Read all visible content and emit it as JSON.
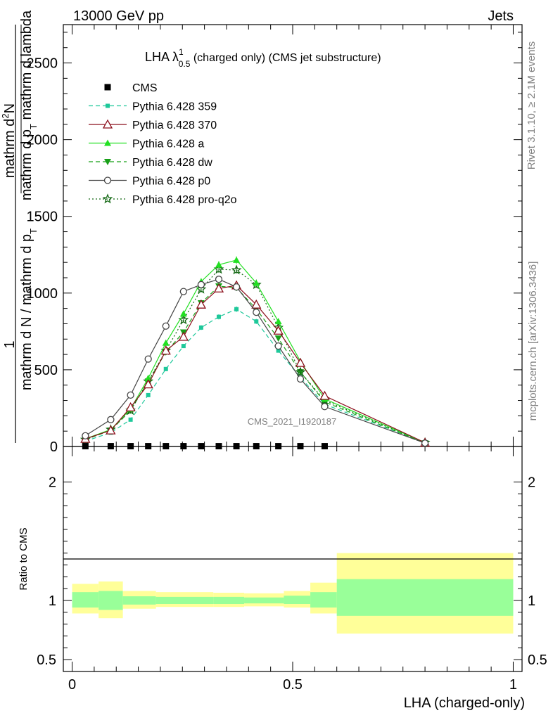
{
  "header": {
    "left": "13000 GeV pp",
    "right": "Jets"
  },
  "side_labels": {
    "rivet": "Rivet 3.1.10, ≥ 2.1M events",
    "mcplots": "mcplots.cern.ch [arXiv:1306.3436]"
  },
  "plot_title": {
    "prefix": "LHA λ",
    "sup": "1",
    "sub": "0.5",
    "suffix": " (charged only) (CMS jet substructure)"
  },
  "watermark": "CMS_2021_I1920187",
  "xlabel": "LHA (charged-only)",
  "ylabel_main": {
    "numerator": "1",
    "denominator": "mathrm d N / mathrm d p",
    "denominator_sub": "T",
    "inner_numerator": "mathrm d",
    "inner_numerator_sup": "2",
    "inner_numerator_rest": "N",
    "inner_denominator": "mathrm d p",
    "inner_denominator_sub": "T",
    "inner_denominator_rest": " mathrm d lambda"
  },
  "ylabel_ratio": "Ratio to CMS",
  "main_yticks": [
    {
      "v": 0,
      "label": "0"
    },
    {
      "v": 500,
      "label": "500"
    },
    {
      "v": 1000,
      "label": "1000"
    },
    {
      "v": 1500,
      "label": "1500"
    },
    {
      "v": 2000,
      "label": "2000"
    },
    {
      "v": 2500,
      "label": "2500"
    }
  ],
  "ratio_yticks": [
    {
      "v": 0.5,
      "label": "0.5"
    },
    {
      "v": 1,
      "label": "1"
    },
    {
      "v": 2,
      "label": "2"
    }
  ],
  "xticks": [
    {
      "v": 0,
      "label": "0"
    },
    {
      "v": 0.5,
      "label": "0.5"
    },
    {
      "v": 1,
      "label": "1"
    }
  ],
  "colors": {
    "cms": "#000000",
    "p359": "#1ec89a",
    "p370": "#8b0d1a",
    "pa": "#22e022",
    "pdw": "#18a018",
    "pp0": "#444444",
    "pq2o": "#136813",
    "band_outer": "#ffff99",
    "band_inner": "#99ff99"
  },
  "chart_data": {
    "type": "line",
    "xlim": [
      -0.02,
      1.02
    ],
    "ylim": [
      0,
      2750
    ],
    "ratio_ylim": [
      0.4,
      2.3
    ],
    "x": [
      0.03,
      0.0875,
      0.1325,
      0.1725,
      0.2125,
      0.2525,
      0.2925,
      0.3325,
      0.3725,
      0.4175,
      0.4675,
      0.5175,
      0.5725,
      0.8
    ],
    "series": [
      {
        "name": "CMS",
        "key": "cms",
        "style": "square",
        "dash": "",
        "values": [
          2,
          2,
          2,
          2,
          2,
          2,
          2,
          2,
          2,
          2,
          2,
          2,
          2,
          0
        ]
      },
      {
        "name": "Pythia 6.428 359",
        "key": "p359",
        "style": "smallsquare",
        "dash": "6,4",
        "values": [
          35,
          90,
          175,
          335,
          505,
          655,
          775,
          845,
          895,
          815,
          625,
          450,
          275,
          25
        ]
      },
      {
        "name": "Pythia 6.428 370",
        "key": "p370",
        "style": "triangle-open",
        "dash": "",
        "values": [
          50,
          105,
          255,
          405,
          625,
          715,
          925,
          1030,
          1050,
          925,
          755,
          545,
          330,
          25
        ]
      },
      {
        "name": "Pythia 6.428 a",
        "key": "pa",
        "style": "triangle",
        "dash": "",
        "values": [
          50,
          110,
          245,
          445,
          675,
          865,
          1075,
          1185,
          1215,
          1065,
          815,
          555,
          310,
          25
        ]
      },
      {
        "name": "Pythia 6.428 dw",
        "key": "pdw",
        "style": "triangle-down",
        "dash": "6,4",
        "values": [
          45,
          105,
          235,
          425,
          615,
          745,
          935,
          1045,
          1035,
          895,
          705,
          485,
          290,
          22
        ]
      },
      {
        "name": "Pythia 6.428 p0",
        "key": "pp0",
        "style": "circle-open",
        "dash": "",
        "values": [
          70,
          175,
          335,
          570,
          785,
          1010,
          1055,
          1090,
          1040,
          875,
          655,
          440,
          260,
          22
        ]
      },
      {
        "name": "Pythia 6.428 pro-q2o",
        "key": "pq2o",
        "style": "star",
        "dash": "2,3",
        "values": [
          45,
          110,
          235,
          425,
          625,
          825,
          1025,
          1155,
          1150,
          1055,
          775,
          485,
          300,
          25
        ]
      }
    ],
    "ratio_band": [
      {
        "x0": 0.0,
        "x1": 0.06,
        "outer": [
          0.89,
          1.14
        ],
        "inner": [
          0.94,
          1.07
        ]
      },
      {
        "x0": 0.06,
        "x1": 0.115,
        "outer": [
          0.85,
          1.16
        ],
        "inner": [
          0.92,
          1.08
        ]
      },
      {
        "x0": 0.115,
        "x1": 0.19,
        "outer": [
          0.93,
          1.08
        ],
        "inner": [
          0.965,
          1.035
        ]
      },
      {
        "x0": 0.19,
        "x1": 0.32,
        "outer": [
          0.945,
          1.07
        ],
        "inner": [
          0.97,
          1.03
        ]
      },
      {
        "x0": 0.32,
        "x1": 0.39,
        "outer": [
          0.945,
          1.065
        ],
        "inner": [
          0.97,
          1.03
        ]
      },
      {
        "x0": 0.39,
        "x1": 0.48,
        "outer": [
          0.95,
          1.06
        ],
        "inner": [
          0.975,
          1.025
        ]
      },
      {
        "x0": 0.48,
        "x1": 0.54,
        "outer": [
          0.94,
          1.08
        ],
        "inner": [
          0.97,
          1.04
        ]
      },
      {
        "x0": 0.54,
        "x1": 0.6,
        "outer": [
          0.89,
          1.15
        ],
        "inner": [
          0.94,
          1.07
        ]
      },
      {
        "x0": 0.6,
        "x1": 1.0,
        "outer": [
          0.72,
          1.4
        ],
        "inner": [
          0.87,
          1.18
        ]
      }
    ]
  }
}
